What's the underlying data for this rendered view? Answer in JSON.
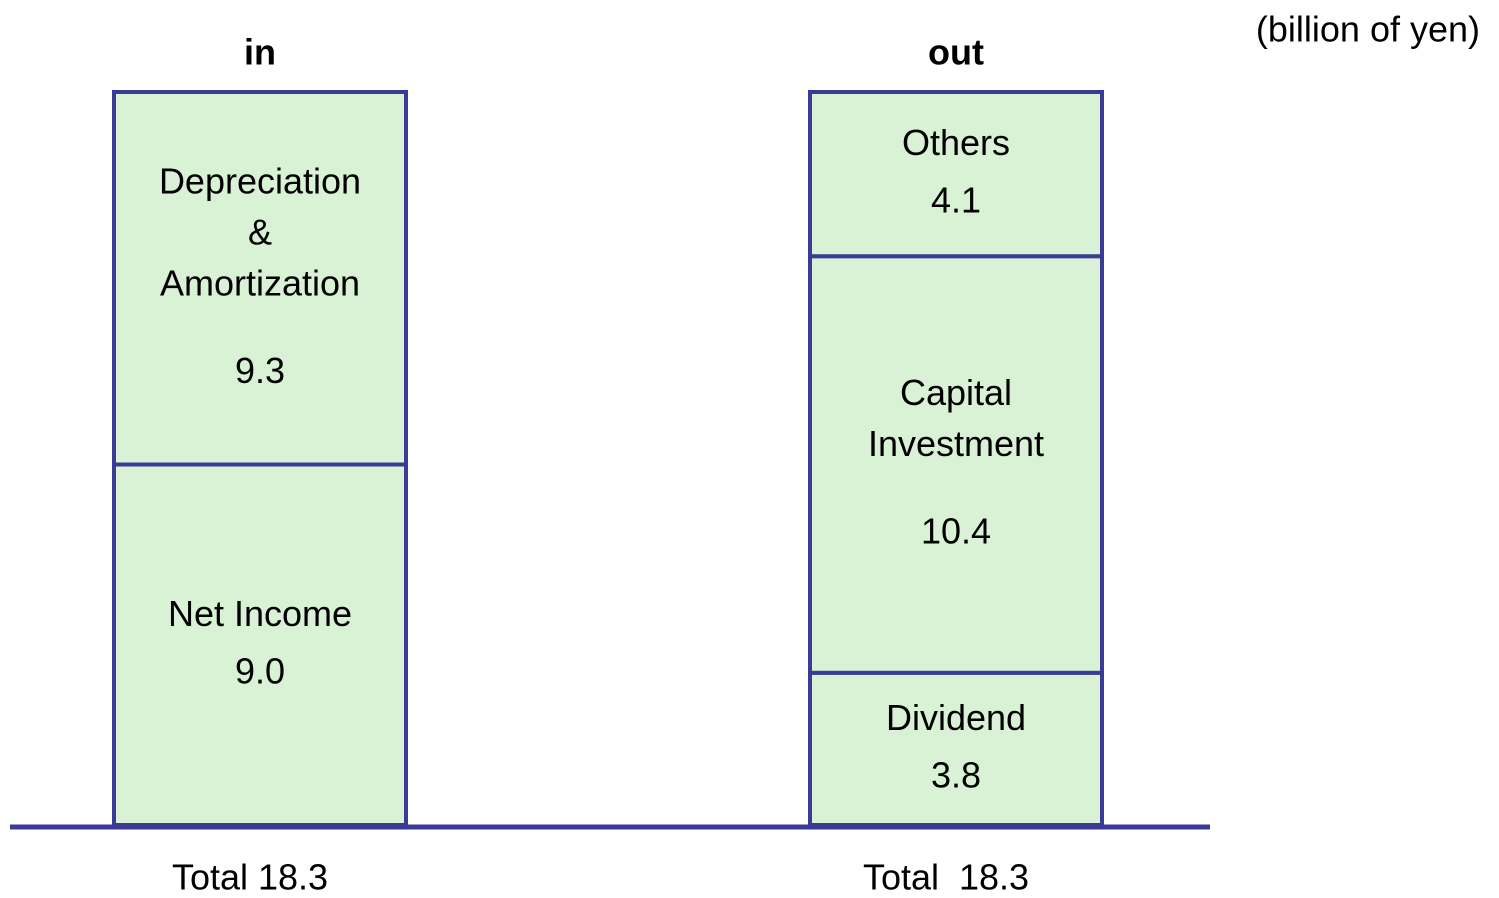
{
  "chart_data": {
    "type": "stacked-bar",
    "unit_label": "(billion of yen)",
    "categories": [
      "in",
      "out"
    ],
    "series": [
      {
        "name": "Net Income",
        "values": [
          9.0,
          null
        ],
        "value_labels": [
          "9.0",
          null
        ]
      },
      {
        "name": "Depreciation\n&\nAmortization",
        "values": [
          9.3,
          null
        ]
      },
      {
        "name": "Dividend",
        "values": [
          null,
          3.8
        ]
      },
      {
        "name": "Capital\nInvestment",
        "values": [
          null,
          10.4
        ]
      },
      {
        "name": "Others",
        "values": [
          null,
          4.1
        ]
      }
    ],
    "totals": [
      "Total 18.3",
      "Total  18.3"
    ],
    "ylim": [
      0,
      18.3
    ],
    "color": "#d9f1d4",
    "edge_color": "#3b3b96"
  }
}
